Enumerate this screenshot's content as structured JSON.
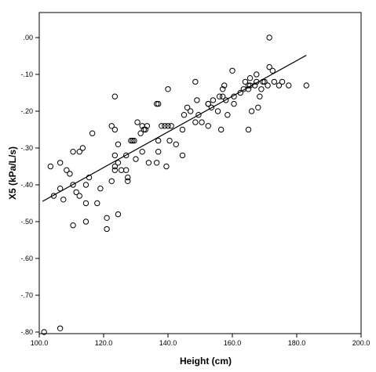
{
  "chart_data": {
    "type": "scatter",
    "xlabel": "Height (cm)",
    "ylabel": "X5 (kPa/L/s)",
    "xlim": [
      100,
      200
    ],
    "ylim": [
      -0.8,
      0.05
    ],
    "x_ticks": [
      {
        "value": 100,
        "label": "100.0"
      },
      {
        "value": 120,
        "label": "120.0"
      },
      {
        "value": 140,
        "label": "140.0"
      },
      {
        "value": 160,
        "label": "160.0"
      },
      {
        "value": 180,
        "label": "180.0"
      },
      {
        "value": 200,
        "label": "200.0"
      }
    ],
    "y_ticks": [
      {
        "value": 0,
        "label": ".00"
      },
      {
        "value": -0.1,
        "label": "-.10"
      },
      {
        "value": -0.2,
        "label": "-.20"
      },
      {
        "value": -0.3,
        "label": "-.30"
      },
      {
        "value": -0.4,
        "label": "-.40"
      },
      {
        "value": -0.5,
        "label": "-.50"
      },
      {
        "value": -0.6,
        "label": "-.60"
      },
      {
        "value": -0.7,
        "label": "-.70"
      },
      {
        "value": -0.8,
        "label": "-.80"
      }
    ],
    "fit_line": {
      "x": [
        101,
        183
      ],
      "y": [
        -0.445,
        -0.048
      ]
    },
    "marker": {
      "shape": "circle",
      "fill": "none",
      "stroke": "#000000"
    },
    "points": [
      [
        101.5,
        -0.8
      ],
      [
        106.5,
        -0.79
      ],
      [
        103.5,
        -0.35
      ],
      [
        106.5,
        -0.34
      ],
      [
        108.5,
        -0.36
      ],
      [
        109.5,
        -0.37
      ],
      [
        110.5,
        -0.31
      ],
      [
        112.5,
        -0.31
      ],
      [
        113.5,
        -0.3
      ],
      [
        116.5,
        -0.26
      ],
      [
        104.5,
        -0.43
      ],
      [
        106.5,
        -0.41
      ],
      [
        107.5,
        -0.44
      ],
      [
        110.5,
        -0.4
      ],
      [
        111.5,
        -0.42
      ],
      [
        112.5,
        -0.43
      ],
      [
        114.5,
        -0.4
      ],
      [
        114.5,
        -0.45
      ],
      [
        115.5,
        -0.38
      ],
      [
        114.5,
        -0.5
      ],
      [
        110.5,
        -0.51
      ],
      [
        118.0,
        -0.45
      ],
      [
        119.0,
        -0.41
      ],
      [
        121.0,
        -0.49
      ],
      [
        121.0,
        -0.52
      ],
      [
        124.5,
        -0.48
      ],
      [
        122.5,
        -0.39
      ],
      [
        123.5,
        -0.35
      ],
      [
        123.5,
        -0.36
      ],
      [
        124.5,
        -0.34
      ],
      [
        123.5,
        -0.32
      ],
      [
        124.5,
        -0.29
      ],
      [
        122.5,
        -0.24
      ],
      [
        123.5,
        -0.25
      ],
      [
        123.5,
        -0.16
      ],
      [
        125.5,
        -0.36
      ],
      [
        127.0,
        -0.32
      ],
      [
        127.0,
        -0.36
      ],
      [
        127.5,
        -0.38
      ],
      [
        127.5,
        -0.39
      ],
      [
        128.5,
        -0.28
      ],
      [
        129.0,
        -0.28
      ],
      [
        129.5,
        -0.28
      ],
      [
        130.0,
        -0.33
      ],
      [
        131.5,
        -0.26
      ],
      [
        132.0,
        -0.24
      ],
      [
        132.5,
        -0.25
      ],
      [
        133.0,
        -0.25
      ],
      [
        132.0,
        -0.31
      ],
      [
        133.5,
        -0.24
      ],
      [
        134.0,
        -0.34
      ],
      [
        130.5,
        -0.23
      ],
      [
        136.5,
        -0.34
      ],
      [
        137.0,
        -0.31
      ],
      [
        137.0,
        -0.28
      ],
      [
        138.0,
        -0.24
      ],
      [
        139.0,
        -0.24
      ],
      [
        140.0,
        -0.24
      ],
      [
        141.0,
        -0.24
      ],
      [
        139.5,
        -0.35
      ],
      [
        140.5,
        -0.28
      ],
      [
        140.0,
        -0.14
      ],
      [
        136.5,
        -0.18
      ],
      [
        137.0,
        -0.18
      ],
      [
        142.5,
        -0.29
      ],
      [
        144.5,
        -0.25
      ],
      [
        144.5,
        -0.32
      ],
      [
        145.0,
        -0.21
      ],
      [
        146.0,
        -0.19
      ],
      [
        147.0,
        -0.2
      ],
      [
        148.5,
        -0.23
      ],
      [
        148.5,
        -0.12
      ],
      [
        149.0,
        -0.17
      ],
      [
        149.5,
        -0.21
      ],
      [
        150.5,
        -0.23
      ],
      [
        152.5,
        -0.24
      ],
      [
        152.5,
        -0.18
      ],
      [
        152.5,
        -0.18
      ],
      [
        153.5,
        -0.19
      ],
      [
        154.0,
        -0.17
      ],
      [
        155.5,
        -0.2
      ],
      [
        156.0,
        -0.16
      ],
      [
        156.5,
        -0.25
      ],
      [
        157.0,
        -0.16
      ],
      [
        157.0,
        -0.14
      ],
      [
        157.5,
        -0.13
      ],
      [
        158.0,
        -0.17
      ],
      [
        158.5,
        -0.21
      ],
      [
        160.0,
        -0.09
      ],
      [
        160.5,
        -0.16
      ],
      [
        160.5,
        -0.18
      ],
      [
        162.5,
        -0.15
      ],
      [
        163.5,
        -0.14
      ],
      [
        164.0,
        -0.12
      ],
      [
        165.0,
        -0.13
      ],
      [
        165.0,
        -0.14
      ],
      [
        165.0,
        -0.25
      ],
      [
        165.5,
        -0.11
      ],
      [
        165.5,
        -0.13
      ],
      [
        166.0,
        -0.2
      ],
      [
        167.0,
        -0.13
      ],
      [
        167.5,
        -0.1
      ],
      [
        167.5,
        -0.12
      ],
      [
        168.0,
        -0.19
      ],
      [
        168.5,
        -0.16
      ],
      [
        169.0,
        -0.14
      ],
      [
        169.5,
        -0.12
      ],
      [
        170.0,
        -0.12
      ],
      [
        171.0,
        -0.13
      ],
      [
        171.5,
        -0.08
      ],
      [
        171.5,
        0.0
      ],
      [
        172.5,
        -0.09
      ],
      [
        173.0,
        -0.12
      ],
      [
        174.5,
        -0.13
      ],
      [
        175.5,
        -0.12
      ],
      [
        177.5,
        -0.13
      ],
      [
        183.0,
        -0.13
      ]
    ]
  }
}
